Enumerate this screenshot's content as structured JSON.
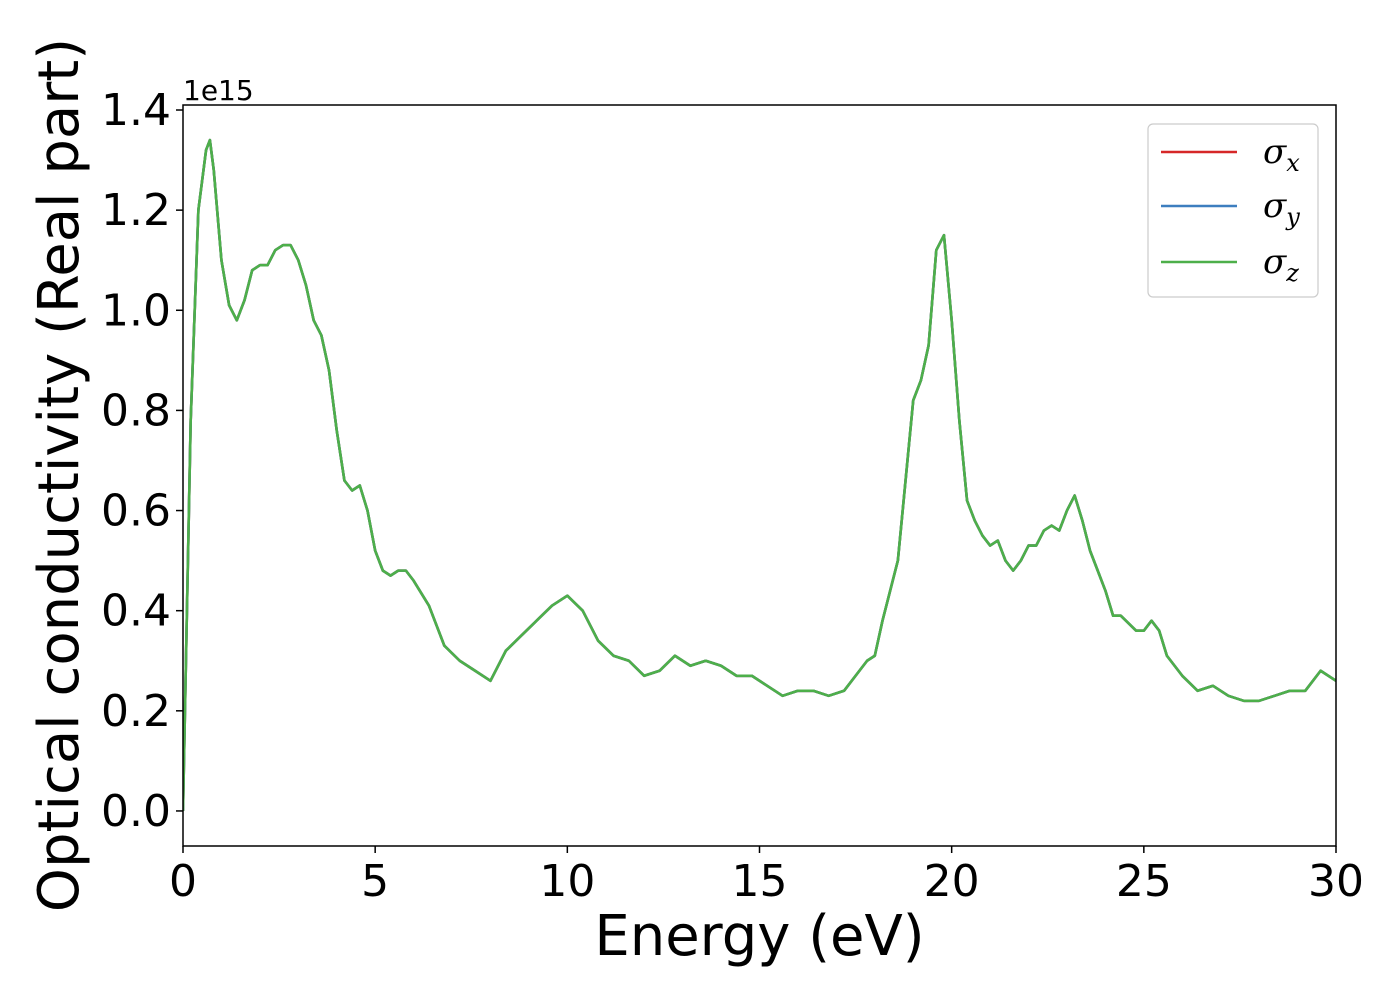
{
  "chart_data": {
    "type": "line",
    "xlabel": "Energy (eV)",
    "ylabel": "Optical conductivity (Real part)",
    "y_offset_label": "1e15",
    "xlim": [
      0,
      30
    ],
    "ylim": [
      -0.07,
      1.41
    ],
    "x_ticks": [
      0,
      5,
      10,
      15,
      20,
      25,
      30
    ],
    "x_tick_labels": [
      "0",
      "5",
      "10",
      "15",
      "20",
      "25",
      "30"
    ],
    "y_ticks": [
      0.0,
      0.2,
      0.4,
      0.6,
      0.8,
      1.0,
      1.2,
      1.4
    ],
    "y_tick_labels": [
      "0.0",
      "0.2",
      "0.4",
      "0.6",
      "0.8",
      "1.0",
      "1.2",
      "1.4"
    ],
    "grid": false,
    "legend_position": "top-right",
    "x": [
      0,
      0.2,
      0.4,
      0.6,
      0.7,
      0.8,
      1.0,
      1.2,
      1.4,
      1.6,
      1.8,
      2.0,
      2.2,
      2.4,
      2.6,
      2.8,
      3.0,
      3.2,
      3.4,
      3.6,
      3.8,
      4.0,
      4.2,
      4.4,
      4.6,
      4.8,
      5.0,
      5.2,
      5.4,
      5.6,
      5.8,
      6.0,
      6.4,
      6.8,
      7.2,
      7.6,
      8.0,
      8.4,
      8.8,
      9.2,
      9.6,
      10.0,
      10.4,
      10.8,
      11.2,
      11.6,
      12.0,
      12.4,
      12.8,
      13.2,
      13.6,
      14.0,
      14.4,
      14.8,
      15.2,
      15.6,
      16.0,
      16.4,
      16.8,
      17.2,
      17.6,
      17.8,
      18.0,
      18.2,
      18.4,
      18.6,
      18.8,
      19.0,
      19.2,
      19.4,
      19.6,
      19.8,
      20.0,
      20.2,
      20.4,
      20.6,
      20.8,
      21.0,
      21.2,
      21.4,
      21.6,
      21.8,
      22.0,
      22.2,
      22.4,
      22.6,
      22.8,
      23.0,
      23.2,
      23.4,
      23.6,
      23.8,
      24.0,
      24.2,
      24.4,
      24.8,
      25.0,
      25.2,
      25.4,
      25.6,
      26.0,
      26.4,
      26.8,
      27.2,
      27.6,
      28.0,
      28.4,
      28.8,
      29.2,
      29.6,
      30.0
    ],
    "series": [
      {
        "name": "σx",
        "color": "#d62728",
        "values": [
          0.0,
          0.78,
          1.2,
          1.32,
          1.34,
          1.28,
          1.1,
          1.01,
          0.98,
          1.02,
          1.08,
          1.09,
          1.09,
          1.12,
          1.13,
          1.13,
          1.1,
          1.05,
          0.98,
          0.95,
          0.88,
          0.76,
          0.66,
          0.64,
          0.65,
          0.6,
          0.52,
          0.48,
          0.47,
          0.48,
          0.48,
          0.46,
          0.41,
          0.33,
          0.3,
          0.28,
          0.26,
          0.32,
          0.35,
          0.38,
          0.41,
          0.43,
          0.4,
          0.34,
          0.31,
          0.3,
          0.27,
          0.28,
          0.31,
          0.29,
          0.3,
          0.29,
          0.27,
          0.27,
          0.25,
          0.23,
          0.24,
          0.24,
          0.23,
          0.24,
          0.28,
          0.3,
          0.31,
          0.38,
          0.44,
          0.5,
          0.66,
          0.82,
          0.86,
          0.93,
          1.12,
          1.15,
          0.98,
          0.78,
          0.62,
          0.58,
          0.55,
          0.53,
          0.54,
          0.5,
          0.48,
          0.5,
          0.53,
          0.53,
          0.56,
          0.57,
          0.56,
          0.6,
          0.63,
          0.58,
          0.52,
          0.48,
          0.44,
          0.39,
          0.39,
          0.36,
          0.36,
          0.38,
          0.36,
          0.31,
          0.27,
          0.24,
          0.25,
          0.23,
          0.22,
          0.22,
          0.23,
          0.24,
          0.24,
          0.28,
          0.26
        ]
      },
      {
        "name": "σy",
        "color": "#3d7ebf",
        "values": [
          0.0,
          0.78,
          1.2,
          1.32,
          1.34,
          1.28,
          1.1,
          1.01,
          0.98,
          1.02,
          1.08,
          1.09,
          1.09,
          1.12,
          1.13,
          1.13,
          1.1,
          1.05,
          0.98,
          0.95,
          0.88,
          0.76,
          0.66,
          0.64,
          0.65,
          0.6,
          0.52,
          0.48,
          0.47,
          0.48,
          0.48,
          0.46,
          0.41,
          0.33,
          0.3,
          0.28,
          0.26,
          0.32,
          0.35,
          0.38,
          0.41,
          0.43,
          0.4,
          0.34,
          0.31,
          0.3,
          0.27,
          0.28,
          0.31,
          0.29,
          0.3,
          0.29,
          0.27,
          0.27,
          0.25,
          0.23,
          0.24,
          0.24,
          0.23,
          0.24,
          0.28,
          0.3,
          0.31,
          0.38,
          0.44,
          0.5,
          0.66,
          0.82,
          0.86,
          0.93,
          1.12,
          1.15,
          0.98,
          0.78,
          0.62,
          0.58,
          0.55,
          0.53,
          0.54,
          0.5,
          0.48,
          0.5,
          0.53,
          0.53,
          0.56,
          0.57,
          0.56,
          0.6,
          0.63,
          0.58,
          0.52,
          0.48,
          0.44,
          0.39,
          0.39,
          0.36,
          0.36,
          0.38,
          0.36,
          0.31,
          0.27,
          0.24,
          0.25,
          0.23,
          0.22,
          0.22,
          0.23,
          0.24,
          0.24,
          0.28,
          0.26
        ]
      },
      {
        "name": "σz",
        "color": "#4daf4a",
        "values": [
          0.0,
          0.78,
          1.2,
          1.32,
          1.34,
          1.28,
          1.1,
          1.01,
          0.98,
          1.02,
          1.08,
          1.09,
          1.09,
          1.12,
          1.13,
          1.13,
          1.1,
          1.05,
          0.98,
          0.95,
          0.88,
          0.76,
          0.66,
          0.64,
          0.65,
          0.6,
          0.52,
          0.48,
          0.47,
          0.48,
          0.48,
          0.46,
          0.41,
          0.33,
          0.3,
          0.28,
          0.26,
          0.32,
          0.35,
          0.38,
          0.41,
          0.43,
          0.4,
          0.34,
          0.31,
          0.3,
          0.27,
          0.28,
          0.31,
          0.29,
          0.3,
          0.29,
          0.27,
          0.27,
          0.25,
          0.23,
          0.24,
          0.24,
          0.23,
          0.24,
          0.28,
          0.3,
          0.31,
          0.38,
          0.44,
          0.5,
          0.66,
          0.82,
          0.86,
          0.93,
          1.12,
          1.15,
          0.98,
          0.78,
          0.62,
          0.58,
          0.55,
          0.53,
          0.54,
          0.5,
          0.48,
          0.5,
          0.53,
          0.53,
          0.56,
          0.57,
          0.56,
          0.6,
          0.63,
          0.58,
          0.52,
          0.48,
          0.44,
          0.39,
          0.39,
          0.36,
          0.36,
          0.38,
          0.36,
          0.31,
          0.27,
          0.24,
          0.25,
          0.23,
          0.22,
          0.22,
          0.23,
          0.24,
          0.24,
          0.28,
          0.26
        ]
      }
    ],
    "legend": [
      {
        "symbol": "σ",
        "subscript": "x",
        "color": "#d62728"
      },
      {
        "symbol": "σ",
        "subscript": "y",
        "color": "#3d7ebf"
      },
      {
        "symbol": "σ",
        "subscript": "z",
        "color": "#4daf4a"
      }
    ]
  }
}
